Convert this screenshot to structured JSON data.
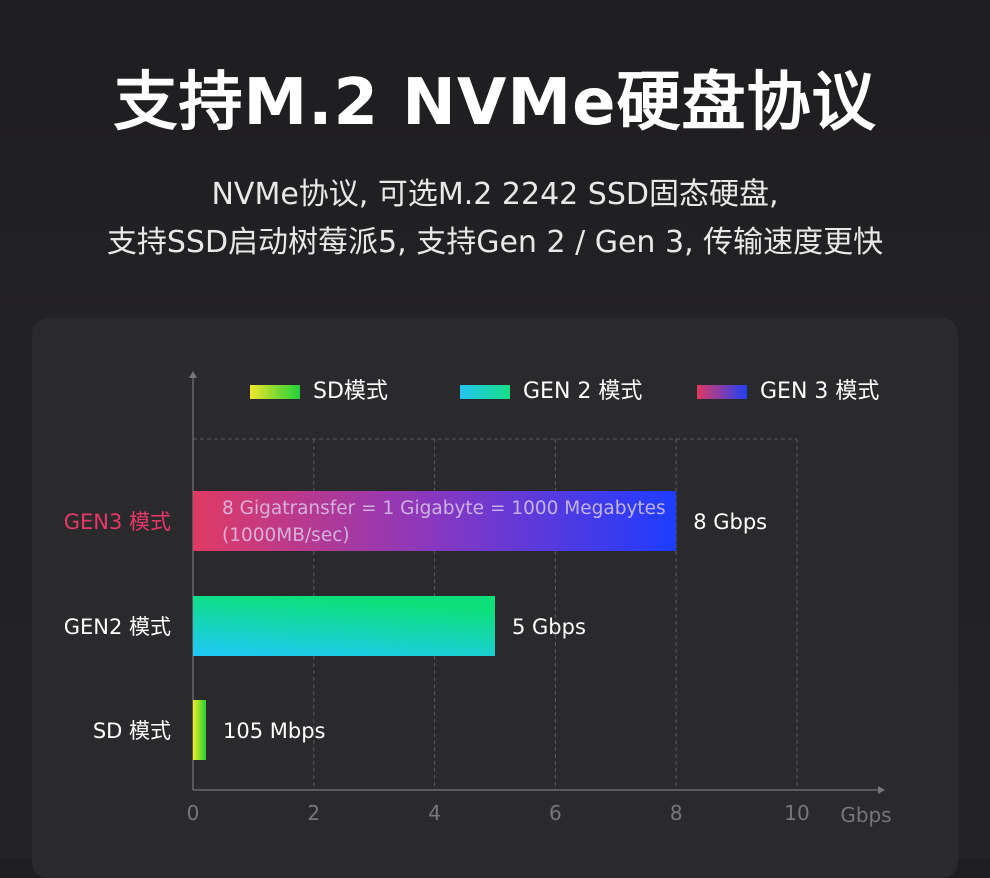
{
  "header": {
    "title": "支持M.2 NVMe硬盘协议",
    "subtitle_line1": "NVMe协议, 可选M.2  2242 SSD固态硬盘,",
    "subtitle_line2": "支持SSD启动树莓派5, 支持Gen 2 / Gen 3, 传输速度更快"
  },
  "chart_data": {
    "type": "bar",
    "orientation": "horizontal",
    "categories": [
      "GEN3 模式",
      "GEN2 模式",
      "SD 模式"
    ],
    "values": [
      8,
      5,
      0.105
    ],
    "value_labels": [
      "8 Gbps",
      "5 Gbps",
      "105 Mbps"
    ],
    "unit": "Gbps",
    "xlim": [
      0,
      10
    ],
    "x_ticks": [
      "0",
      "2",
      "4",
      "6",
      "8",
      "10"
    ],
    "xlabel": "Gbps",
    "grid": true,
    "legend_position": "top",
    "legend": [
      {
        "label": "SD模式",
        "gradient": [
          "#f0e62a",
          "#1fd03a"
        ]
      },
      {
        "label": "GEN 2 模式",
        "gradient": [
          "#22c4f0",
          "#16df86"
        ]
      },
      {
        "label": "GEN 3 模式",
        "gradient": [
          "#e03a64",
          "#2040f5"
        ]
      }
    ],
    "bar_gradients": [
      [
        "#e03a64",
        "#8838c0",
        "#1e3cff"
      ],
      [
        "#1fc8f8",
        "#0de07a"
      ],
      [
        "#f2ea20",
        "#22d234"
      ]
    ],
    "category_colors": [
      "#e8386a",
      "#ffffff",
      "#ffffff"
    ],
    "annotation_line1": "8 Gigatransfer = 1 Gigabyte = 1000 Megabytes",
    "annotation_line2": "(1000MB/sec)"
  }
}
